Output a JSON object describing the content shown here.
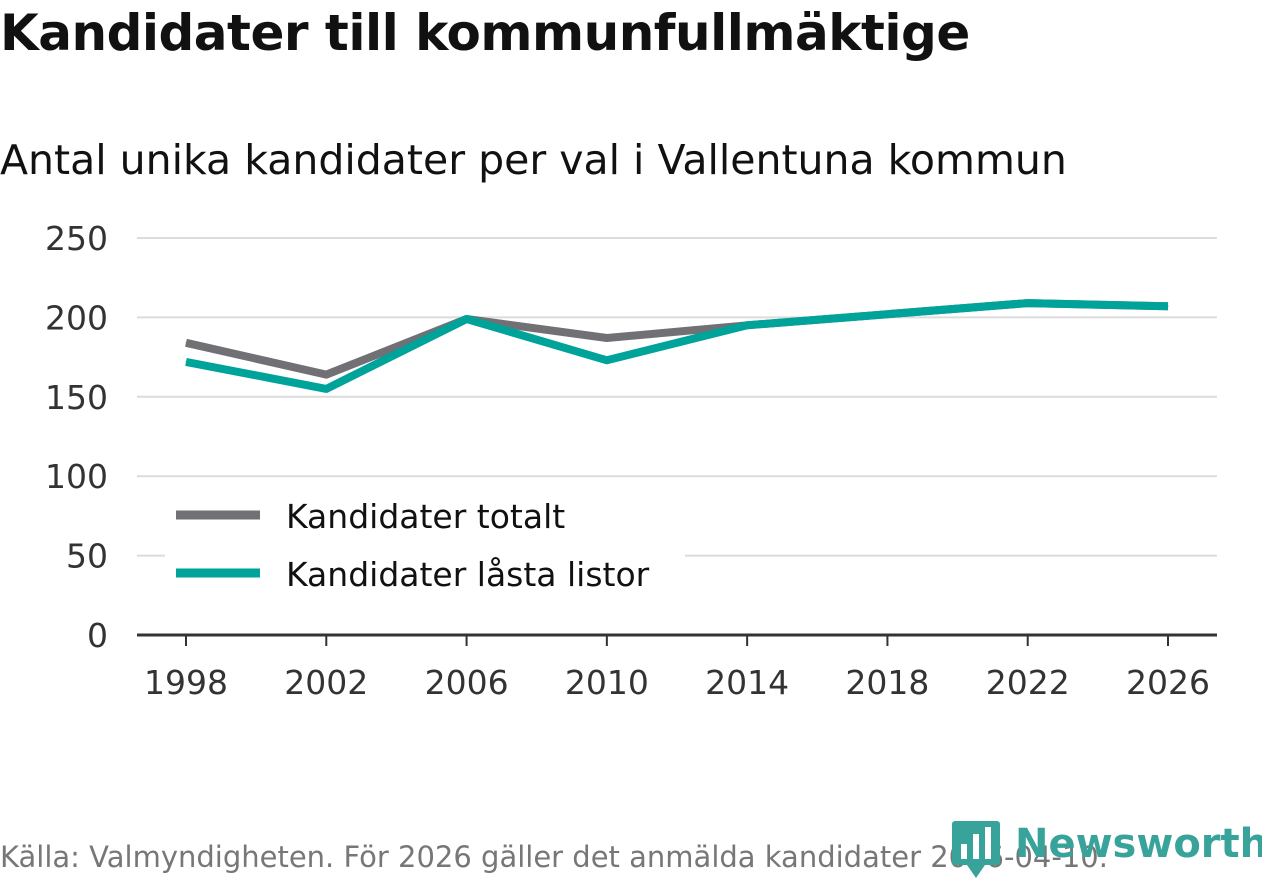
{
  "header": {
    "title": "Kandidater till kommunfullmäktige",
    "subtitle": "Antal unika kandidater per val i Vallentuna kommun"
  },
  "footer": {
    "source": "Källa: Valmyndigheten. För 2026 gäller det anmälda kandidater 2026-04-10.",
    "brand": "Newsworthy",
    "brand_icon": "bar-chart-pin-icon",
    "brand_color": "#38a39a"
  },
  "chart_data": {
    "type": "line",
    "title": "Kandidater till kommunfullmäktige",
    "subtitle": "Antal unika kandidater per val i Vallentuna kommun",
    "xlabel": "",
    "ylabel": "",
    "x": [
      1998,
      2002,
      2006,
      2010,
      2014,
      2018,
      2022,
      2026
    ],
    "x_ticks": [
      "1998",
      "2002",
      "2006",
      "2010",
      "2014",
      "2018",
      "2022",
      "2026"
    ],
    "y_ticks": [
      "0",
      "50",
      "100",
      "150",
      "200",
      "250"
    ],
    "ylim": [
      0,
      250
    ],
    "grid": true,
    "legend_position": "lower-left",
    "series": [
      {
        "name": "Kandidater totalt",
        "color": "#707075",
        "values": [
          184,
          164,
          199,
          187,
          195,
          202,
          209,
          207
        ]
      },
      {
        "name": "Kandidater låsta listor",
        "color": "#00a39a",
        "values": [
          172,
          155,
          199,
          173,
          195,
          202,
          209,
          207
        ]
      }
    ]
  }
}
